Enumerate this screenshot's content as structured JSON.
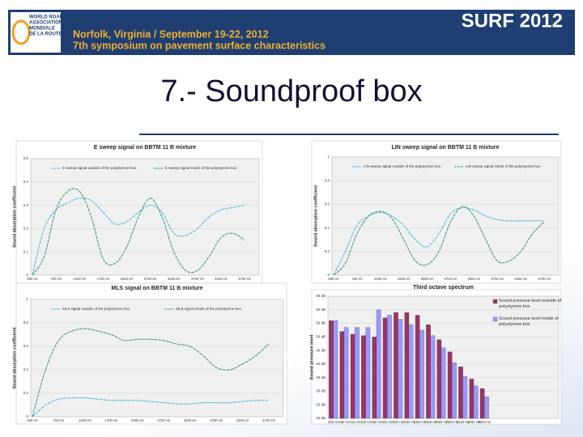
{
  "header": {
    "logo": [
      "WORLD ROAD",
      "ASSOCIATION",
      "MONDIALE",
      "DE LA ROUTE"
    ],
    "event": "SURF 2012",
    "line1": "Norfolk, Virginia / September 19-22, 2012",
    "line2": "7th symposium on pavement surface characteristics"
  },
  "title": "7.- Soundproof box",
  "chart_data": [
    {
      "type": "line",
      "title": "E sweep signal on BBTM 11 B mixture",
      "y_label": "Sound absorption coefficient",
      "categories": [
        "500 Hz",
        null,
        "700 Hz",
        null,
        "1200 Hz",
        null,
        "1700 Hz",
        null,
        "2200 Hz",
        null,
        "2700 Hz",
        null,
        "3200 Hz",
        null,
        "3700 Hz",
        null,
        "4200 Hz",
        null,
        "4700 Hz"
      ],
      "ylim": [
        0,
        0.5
      ],
      "yticks": [
        {
          "value": 0,
          "label": "0"
        },
        {
          "value": 0.1,
          "label": "0,1"
        },
        {
          "value": 0.2,
          "label": "0,2"
        },
        {
          "value": 0.3,
          "label": "0,3"
        },
        {
          "value": 0.4,
          "label": "0,4"
        },
        {
          "value": 0.5,
          "label": "0,5"
        }
      ],
      "series": [
        {
          "name": "E sweep signal outside of the polystyrene box",
          "color": "#4db8e0",
          "values": [
            0,
            0.2,
            0.28,
            0.31,
            0.33,
            0.32,
            0.27,
            0.22,
            0.23,
            0.27,
            0.3,
            0.27,
            0.18,
            0.17,
            0.2,
            0.25,
            0.28,
            0.29,
            0.3
          ]
        },
        {
          "name": "E sweep signal inside of the polystyrene box",
          "color": "#3c9a6c",
          "values": [
            0,
            0.08,
            0.28,
            0.36,
            0.36,
            0.25,
            0.07,
            0.05,
            0.12,
            0.25,
            0.33,
            0.25,
            0.1,
            0.02,
            0.02,
            0.08,
            0.16,
            0.18,
            0.15
          ]
        }
      ]
    },
    {
      "type": "line",
      "title": "LIN sweep signal on BBTM 11 B mixture",
      "y_label": "Sound absorption coefficient",
      "categories": [
        "500 Hz",
        null,
        "750 Hz",
        null,
        "1000 Hz",
        null,
        "1500 Hz",
        null,
        "2000 Hz",
        null,
        "2700 Hz",
        null,
        "3200 Hz",
        null,
        "3700 Hz",
        null,
        "4200 Hz",
        null,
        "4700 Hz"
      ],
      "ylim": [
        0,
        1
      ],
      "yticks": [
        {
          "value": 0,
          "label": "0"
        },
        {
          "value": 0.2,
          "label": "0,2"
        },
        {
          "value": 0.4,
          "label": "0,4"
        },
        {
          "value": 0.6,
          "label": "0,6"
        },
        {
          "value": 0.8,
          "label": "0,8"
        },
        1
      ],
      "series": [
        {
          "name": "LIN sweep signal outside of the polystyrene box",
          "color": "#4db8e0",
          "values": [
            0,
            0.2,
            0.42,
            0.5,
            0.53,
            0.5,
            0.42,
            0.3,
            0.24,
            0.35,
            0.52,
            0.57,
            0.55,
            0.5,
            0.47,
            0.46,
            0.46,
            0.46,
            0.46
          ]
        },
        {
          "name": "LIN sweep signal inside of the polystyrene box",
          "color": "#3c9a6c",
          "values": [
            0,
            0.1,
            0.35,
            0.5,
            0.54,
            0.48,
            0.3,
            0.12,
            0.09,
            0.2,
            0.45,
            0.58,
            0.5,
            0.3,
            0.12,
            0.12,
            0.2,
            0.35,
            0.45
          ]
        }
      ]
    },
    {
      "type": "line",
      "title": "MLS signal on BBTM 11 B mixture",
      "y_label": "Sound absorption coefficient",
      "categories": [
        "200 Hz",
        null,
        "700 Hz",
        null,
        "1200 Hz",
        null,
        "1700 Hz",
        null,
        "2200 Hz",
        null,
        "2700 Hz",
        null,
        "3200 Hz",
        null,
        "3700 Hz",
        null,
        "4200 Hz",
        null,
        "4700 Hz"
      ],
      "ylim": [
        0,
        1
      ],
      "yticks": [
        {
          "value": 0,
          "label": "0"
        },
        {
          "value": 0.2,
          "label": "0,2"
        },
        {
          "value": 0.4,
          "label": "0,4"
        },
        {
          "value": 0.6,
          "label": "0,6"
        },
        {
          "value": 0.8,
          "label": "0,8"
        },
        1
      ],
      "series": [
        {
          "name": "MLS signal outside of the polystyrene box",
          "color": "#4db8e0",
          "values": [
            0,
            0.1,
            0.15,
            0.16,
            0.16,
            0.15,
            0.14,
            0.14,
            0.14,
            0.13,
            0.12,
            0.11,
            0.11,
            0.12,
            0.12,
            0.12,
            0.13,
            0.14,
            0.14
          ]
        },
        {
          "name": "MLS signal inside of the polystyrene box",
          "color": "#3c9a6c",
          "values": [
            0,
            0.4,
            0.65,
            0.73,
            0.75,
            0.73,
            0.7,
            0.65,
            0.66,
            0.66,
            0.65,
            0.62,
            0.6,
            0.52,
            0.42,
            0.4,
            0.45,
            0.52,
            0.62
          ]
        }
      ]
    },
    {
      "type": "bar",
      "title": "Third octave spectrum",
      "y_label": "Sound pressure level",
      "categories": [
        "200 Hz",
        "250 Hz",
        "315 Hz",
        "400 Hz",
        "500 Hz",
        "630 Hz",
        "800 Hz",
        "1000 Hz",
        "1250 Hz",
        "1600 Hz",
        "2000 Hz",
        "2500 Hz",
        "3150 Hz",
        "4000 Hz",
        "5000 Hz"
      ],
      "ylim": [
        20,
        65
      ],
      "yticks": [
        {
          "value": 20,
          "label": "20 dB"
        },
        {
          "value": 25,
          "label": "25 dB"
        },
        {
          "value": 30,
          "label": "30 dB"
        },
        {
          "value": 35,
          "label": "35 dB"
        },
        {
          "value": 40,
          "label": "40 dB"
        },
        {
          "value": 45,
          "label": "45 dB"
        },
        {
          "value": 50,
          "label": "50 dB"
        },
        {
          "value": 55,
          "label": "55 dB"
        },
        {
          "value": 60,
          "label": "60 dB"
        },
        {
          "value": 65,
          "label": "65 dB"
        }
      ],
      "series": [
        {
          "name": "Sound pressure level outside of polystyrene box",
          "color": "#993366",
          "values": [
            56,
            52,
            51,
            50.5,
            50,
            57,
            59,
            59,
            58,
            54.5,
            49,
            44.5,
            39,
            34.5,
            31
          ]
        },
        {
          "name": "Sound pressure level inside of polystyrene box",
          "color": "#9999ff",
          "values": [
            56,
            53.5,
            53.5,
            53.5,
            60,
            58,
            56.5,
            54.5,
            52.5,
            50.5,
            46,
            40.5,
            35.5,
            32,
            28
          ]
        }
      ]
    }
  ]
}
